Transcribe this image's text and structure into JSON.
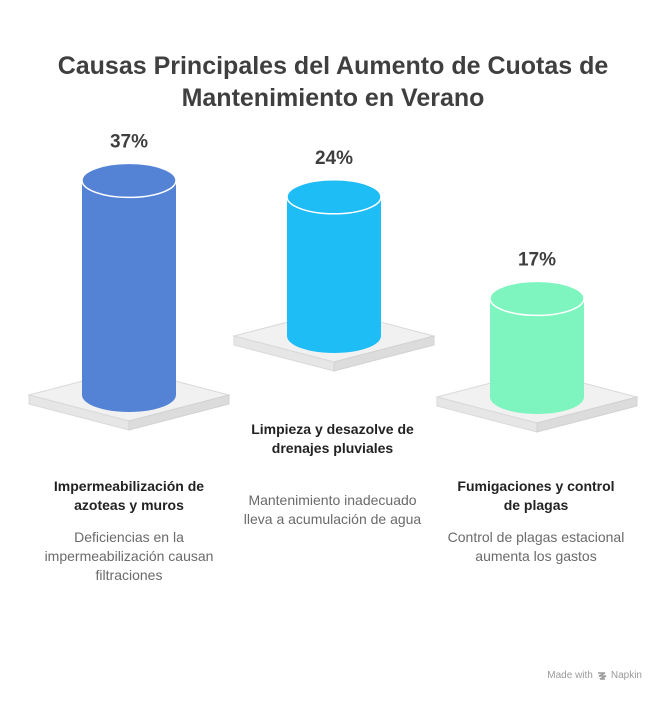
{
  "chart_data": {
    "type": "bar",
    "title": "Causas Principales del Aumento de Cuotas de Mantenimiento en Verano",
    "categories": [
      "Impermeabilización de azoteas y muros",
      "Limpieza y desazolve de drenajes pluviales",
      "Fumigaciones y control de plagas"
    ],
    "values": [
      37,
      24,
      17
    ],
    "value_labels": [
      "37%",
      "24%",
      "17%"
    ],
    "descriptions": [
      "Deficiencias en la impermeabilización causan filtraciones",
      "Mantenimiento inadecuado lleva a acumulación de agua",
      "Control de plagas estacional aumenta los gastos"
    ],
    "colors": [
      "#5483d6",
      "#1fbdf5",
      "#7ef5be"
    ],
    "unit": "%"
  },
  "footer": {
    "made_with": "Made with",
    "brand": "Napkin"
  }
}
